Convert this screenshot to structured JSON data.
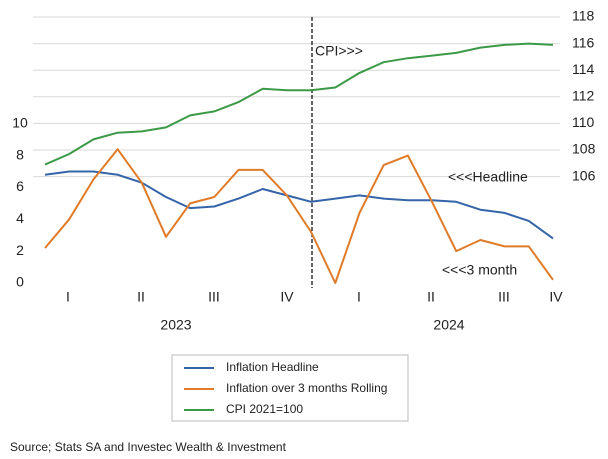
{
  "chart_data": {
    "type": "line",
    "categories": [
      null,
      null,
      null,
      null,
      null,
      null,
      null,
      null,
      null,
      null,
      null,
      null,
      null,
      null,
      null,
      null,
      null,
      null,
      null,
      null,
      null,
      null
    ],
    "quarter_labels": [
      "I",
      "II",
      "III",
      "IV",
      "I",
      "II",
      "III",
      "IV"
    ],
    "year_labels": [
      "2023",
      "2024"
    ],
    "series": [
      {
        "name": "Inflation Headline",
        "color": "#3565a8",
        "values": [
          6.8,
          7.0,
          7.0,
          6.8,
          6.3,
          5.4,
          4.7,
          4.8,
          5.3,
          5.9,
          5.5,
          5.1,
          5.3,
          5.5,
          5.3,
          5.2,
          5.2,
          5.1,
          4.6,
          4.4,
          3.9,
          2.8
        ]
      },
      {
        "name": "Inflation over 3 months Rolling",
        "color": "#e07b28",
        "values": [
          2.2,
          4.0,
          6.5,
          8.4,
          6.3,
          2.9,
          5.0,
          5.4,
          7.1,
          7.1,
          5.5,
          3.2,
          0,
          4.4,
          7.4,
          8.0,
          5.1,
          2.0,
          2.7,
          2.3,
          2.3,
          0.2
        ]
      },
      {
        "name": "CPI 2021=100",
        "color": "#3c9a47",
        "axis": "y2",
        "values": [
          106.9,
          107.7,
          108.8,
          109.3,
          109.4,
          109.7,
          110.6,
          110.9,
          111.6,
          112.6,
          112.5,
          112.5,
          112.7,
          113.8,
          114.6,
          114.9,
          115.1,
          115.3,
          115.7,
          115.9,
          116.0,
          115.9
        ]
      }
    ],
    "ylim": [
      0,
      16.7
    ],
    "yticks": [
      0,
      2,
      4,
      6,
      8,
      10
    ],
    "y2lim": [
      98,
      118
    ],
    "y2ticks": [
      106,
      108,
      110,
      112,
      114,
      116,
      118
    ],
    "grid": "y2",
    "annotations": [
      "CPI>>>",
      "<<<Headline",
      "<<<3 month"
    ],
    "source": "Source; Stats SA and Investec Wealth & Investment"
  }
}
